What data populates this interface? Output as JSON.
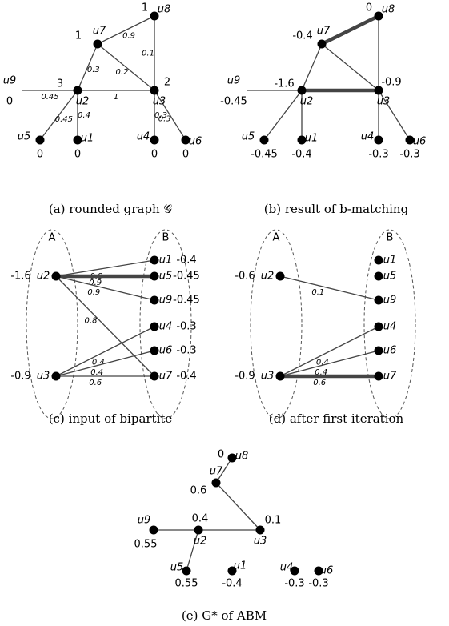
{
  "panels": [
    {
      "caption": "(a) rounded graph 𝒢",
      "nodes": [
        {
          "name": "u8",
          "value": 1
        },
        {
          "name": "u7",
          "value": 1
        },
        {
          "name": "u2",
          "value": 3
        },
        {
          "name": "u3",
          "value": 2
        },
        {
          "name": "u9",
          "value": 0
        },
        {
          "name": "u5",
          "value": 0
        },
        {
          "name": "u1",
          "value": 0
        },
        {
          "name": "u4",
          "value": 0
        },
        {
          "name": "u6",
          "value": 0
        }
      ],
      "edges": [
        {
          "from": "u7",
          "to": "u8",
          "weight": 0.9
        },
        {
          "from": "u8",
          "to": "u3",
          "weight": 0.1
        },
        {
          "from": "u7",
          "to": "u2",
          "weight": 0.3
        },
        {
          "from": "u7",
          "to": "u3",
          "weight": 0.2
        },
        {
          "from": "u2",
          "to": "u3",
          "weight": 1
        },
        {
          "from": "u9",
          "to": "u2",
          "weight": 0.45
        },
        {
          "from": "u5",
          "to": "u2",
          "weight": 0.45
        },
        {
          "from": "u1",
          "to": "u2",
          "weight": 0.4
        },
        {
          "from": "u4",
          "to": "u3",
          "weight": 0.3
        },
        {
          "from": "u6",
          "to": "u3",
          "weight": 0.3
        }
      ]
    },
    {
      "caption": "(b) result of b-matching",
      "nodes": [
        {
          "name": "u8",
          "value": 0
        },
        {
          "name": "u7",
          "value": -0.4
        },
        {
          "name": "u2",
          "value": -1.6
        },
        {
          "name": "u3",
          "value": -0.9
        },
        {
          "name": "u9",
          "value": -0.45
        },
        {
          "name": "u5",
          "value": -0.45
        },
        {
          "name": "u1",
          "value": -0.4
        },
        {
          "name": "u4",
          "value": -0.3
        },
        {
          "name": "u6",
          "value": -0.3
        }
      ],
      "edges": [
        {
          "from": "u7",
          "to": "u8",
          "bold": true
        },
        {
          "from": "u8",
          "to": "u3"
        },
        {
          "from": "u7",
          "to": "u2"
        },
        {
          "from": "u7",
          "to": "u3"
        },
        {
          "from": "u2",
          "to": "u3",
          "bold": true
        },
        {
          "from": "u9",
          "to": "u2"
        },
        {
          "from": "u5",
          "to": "u2"
        },
        {
          "from": "u1",
          "to": "u2"
        },
        {
          "from": "u4",
          "to": "u3"
        },
        {
          "from": "u6",
          "to": "u3"
        }
      ]
    },
    {
      "caption": "(c) input of bipartite",
      "sides": [
        "A",
        "B"
      ],
      "nodes": [
        {
          "name": "u2",
          "value": -1.6
        },
        {
          "name": "u3",
          "value": -0.9
        },
        {
          "name": "u1",
          "value": -0.4
        },
        {
          "name": "u5",
          "value": -0.45
        },
        {
          "name": "u9",
          "value": -0.45
        },
        {
          "name": "u4",
          "value": -0.3
        },
        {
          "name": "u6",
          "value": -0.3
        },
        {
          "name": "u7",
          "value": -0.4
        }
      ],
      "edges": [
        {
          "from": "u2",
          "to": "u1",
          "weight": 0.8
        },
        {
          "from": "u2",
          "to": "u5",
          "weight": 0.9,
          "bold": true
        },
        {
          "from": "u2",
          "to": "u9",
          "weight": 0.9
        },
        {
          "from": "u2",
          "to": "u7",
          "weight": 0.8
        },
        {
          "from": "u3",
          "to": "u4",
          "weight": 0.4
        },
        {
          "from": "u3",
          "to": "u6",
          "weight": 0.4
        },
        {
          "from": "u3",
          "to": "u7",
          "weight": 0.6
        }
      ]
    },
    {
      "caption": "(d) after first iteration",
      "sides": [
        "A",
        "B"
      ],
      "nodes": [
        {
          "name": "u2",
          "value": -0.6
        },
        {
          "name": "u3",
          "value": -0.9
        },
        {
          "name": "u1"
        },
        {
          "name": "u5"
        },
        {
          "name": "u9"
        },
        {
          "name": "u4"
        },
        {
          "name": "u6"
        },
        {
          "name": "u7"
        }
      ],
      "edges": [
        {
          "from": "u2",
          "to": "u9",
          "weight": 0.1
        },
        {
          "from": "u3",
          "to": "u4",
          "weight": 0.4
        },
        {
          "from": "u3",
          "to": "u6",
          "weight": 0.4
        },
        {
          "from": "u3",
          "to": "u7",
          "weight": 0.6,
          "bold": true
        }
      ]
    },
    {
      "caption": "(e) G* of ABM",
      "nodes": [
        {
          "name": "u8",
          "value": 0
        },
        {
          "name": "u7",
          "value": 0.6
        },
        {
          "name": "u2",
          "value": 0.4
        },
        {
          "name": "u3",
          "value": 0.1
        },
        {
          "name": "u9",
          "value": 0.55
        },
        {
          "name": "u5",
          "value": 0.55
        },
        {
          "name": "u1",
          "value": -0.4
        },
        {
          "name": "u4",
          "value": -0.3
        },
        {
          "name": "u6",
          "value": -0.3
        }
      ],
      "edges": [
        {
          "from": "u8",
          "to": "u7"
        },
        {
          "from": "u7",
          "to": "u3"
        },
        {
          "from": "u2",
          "to": "u3"
        },
        {
          "from": "u9",
          "to": "u2"
        },
        {
          "from": "u5",
          "to": "u2"
        }
      ]
    }
  ]
}
